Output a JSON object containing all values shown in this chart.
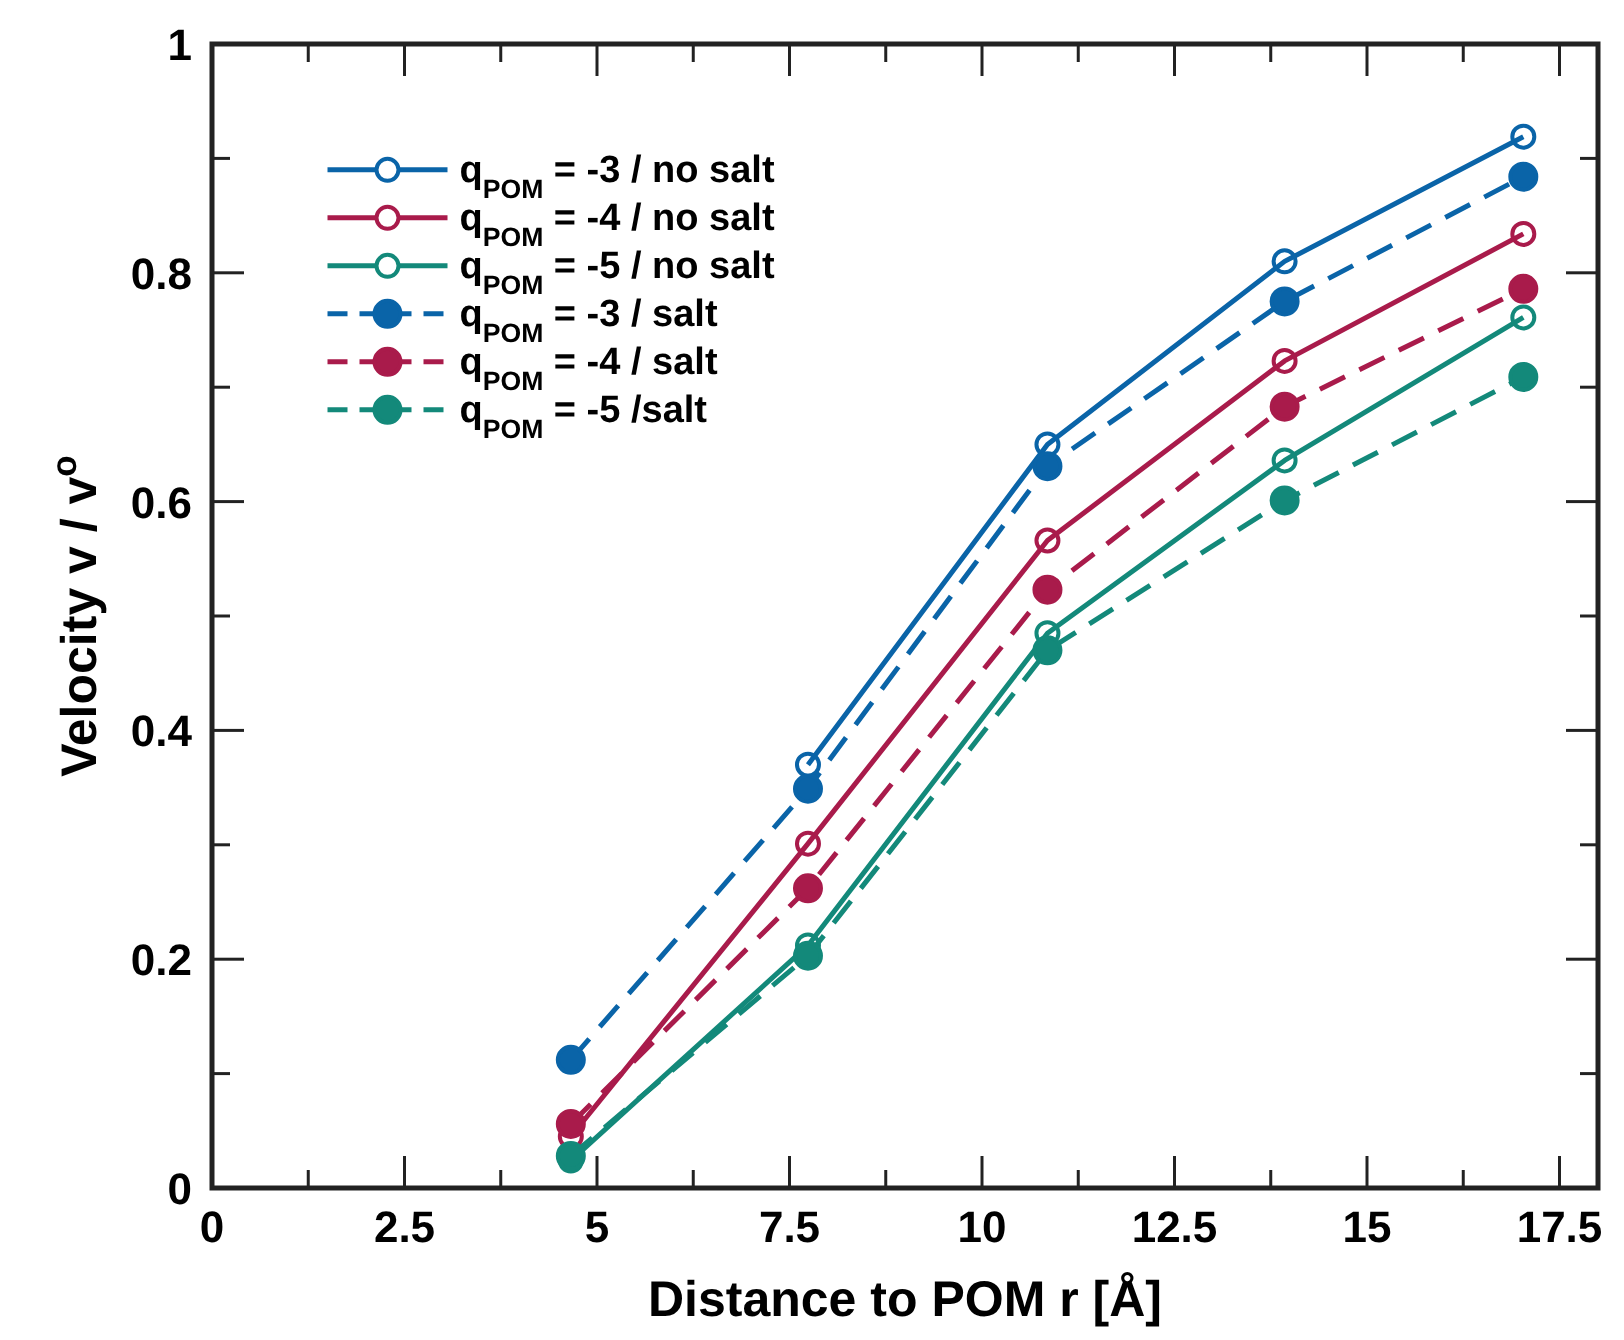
{
  "chart_data": {
    "type": "line",
    "xlabel": "Distance to POM r [Å]",
    "ylabel": "Velocity v / v$^{o}$",
    "xlim": [
      0,
      18
    ],
    "ylim": [
      0,
      1
    ],
    "xticks": [
      0,
      {
        "value": 1.25,
        "label": null
      },
      2.5,
      {
        "value": 3.75,
        "label": null
      },
      5,
      {
        "value": 6.25,
        "label": null
      },
      7.5,
      {
        "value": 8.75,
        "label": null
      },
      10,
      {
        "value": 11.25,
        "label": null
      },
      12.5,
      {
        "value": 13.75,
        "label": null
      },
      15,
      {
        "value": 16.25,
        "label": null
      },
      17.5
    ],
    "yticks": [
      0,
      {
        "value": 0.1,
        "label": null
      },
      0.2,
      {
        "value": 0.3,
        "label": null
      },
      0.4,
      {
        "value": 0.5,
        "label": null
      },
      0.6,
      {
        "value": 0.7,
        "label": null
      },
      0.8,
      {
        "value": 0.9,
        "label": null
      },
      1
    ],
    "x": [
      4.66,
      7.74,
      10.85,
      13.93,
      17.03
    ],
    "grid": false,
    "legend": "top left",
    "series": [
      {
        "name": "q$_{POM}$ = -3 / no salt",
        "color": "#0a64a8",
        "values": [
          null,
          0.37,
          0.65,
          0.81,
          0.919
        ],
        "marker": "circle-open",
        "line_style": "solid"
      },
      {
        "name": "q$_{POM}$ = -4 / no salt",
        "color": "#a91b4b",
        "values": [
          0.045,
          0.301,
          0.566,
          0.723,
          0.834
        ],
        "marker": "circle-open",
        "line_style": "solid"
      },
      {
        "name": "q$_{POM}$ = -5 / no salt",
        "color": "#13897a",
        "values": [
          0.024,
          0.212,
          0.485,
          0.636,
          0.761
        ],
        "marker": "circle-open",
        "line_style": "solid"
      },
      {
        "name": "q$_{POM}$ = -3 / salt",
        "color": "#0a64a8",
        "values": [
          0.112,
          0.349,
          0.631,
          0.775,
          0.884
        ],
        "marker": "circle",
        "line_style": "dashed"
      },
      {
        "name": "q$_{POM}$ = -4 / salt",
        "color": "#a91b4b",
        "values": [
          0.056,
          0.262,
          0.523,
          0.683,
          0.786
        ],
        "marker": "circle",
        "line_style": "dashed"
      },
      {
        "name": "q$_{POM}$ = -5 /salt",
        "color": "#13897a",
        "values": [
          0.028,
          0.203,
          0.47,
          0.601,
          0.709
        ],
        "marker": "circle",
        "line_style": "dashed"
      }
    ]
  }
}
